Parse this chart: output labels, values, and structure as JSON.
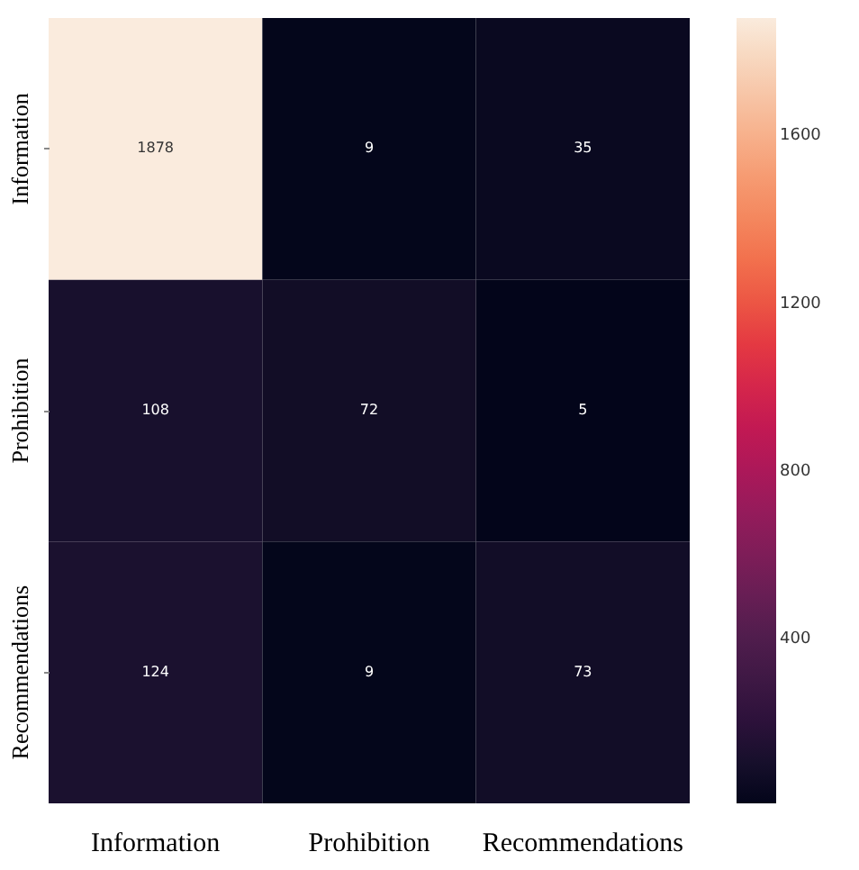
{
  "chart_data": {
    "type": "heatmap",
    "categories": [
      "Information",
      "Prohibition",
      "Recommendations"
    ],
    "y_categories": [
      "Information",
      "Prohibition",
      "Recommendations"
    ],
    "cells": [
      [
        1878,
        9,
        35
      ],
      [
        108,
        72,
        5
      ],
      [
        124,
        9,
        73
      ]
    ],
    "data_labels": true,
    "clim": [
      5,
      1878
    ],
    "cticks": [
      400,
      800,
      1200,
      1600
    ]
  }
}
